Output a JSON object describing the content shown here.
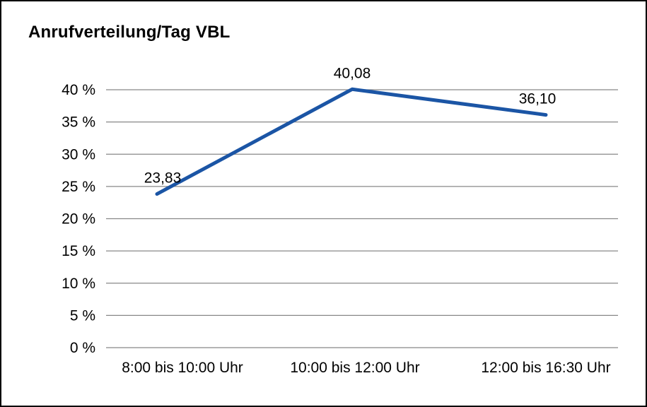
{
  "chart_data": {
    "type": "line",
    "title": "Anrufverteilung/Tag VBL",
    "categories": [
      "8:00 bis 10:00 Uhr",
      "10:00 bis 12:00 Uhr",
      "12:00 bis 16:30 Uhr"
    ],
    "values": [
      23.83,
      40.08,
      36.1
    ],
    "value_labels": [
      "23,83",
      "40,08",
      "36,10"
    ],
    "xlabel": "",
    "ylabel": "",
    "ylim": [
      0,
      40
    ],
    "yticks": [
      0,
      5,
      10,
      15,
      20,
      25,
      30,
      35,
      40
    ],
    "ytick_labels": [
      "0 %",
      "5 %",
      "10 %",
      "15 %",
      "20 %",
      "25 %",
      "30 %",
      "35 %",
      "40 %"
    ],
    "grid": true,
    "legend_position": "none",
    "line_color": "#1B55A5",
    "grid_color": "#888888",
    "axis_text_color": "#000000",
    "label_text_color": "#000000",
    "background_color": "#ffffff",
    "border_color": "#000000"
  }
}
